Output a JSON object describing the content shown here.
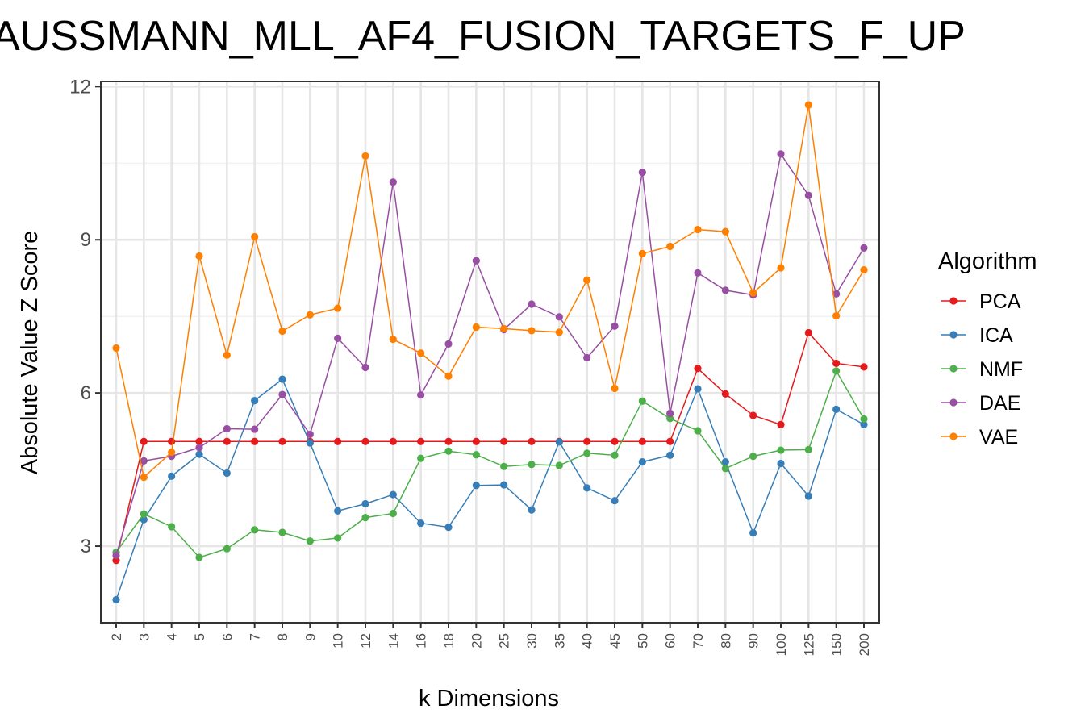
{
  "chart_data": {
    "type": "line",
    "title": "AUSSMANN_MLL_AF4_FUSION_TARGETS_F_UP",
    "xlabel": "k Dimensions",
    "ylabel": "Absolute Value Z Score",
    "categories": [
      "2",
      "3",
      "4",
      "5",
      "6",
      "7",
      "8",
      "9",
      "10",
      "12",
      "14",
      "16",
      "18",
      "20",
      "25",
      "30",
      "35",
      "40",
      "45",
      "50",
      "60",
      "70",
      "80",
      "90",
      "100",
      "125",
      "150",
      "200"
    ],
    "ylim": [
      1.5,
      12.1
    ],
    "yticks": [
      3,
      6,
      9,
      12
    ],
    "grid": true,
    "legend": {
      "title": "Algorithm",
      "position": "right"
    },
    "series": [
      {
        "name": "PCA",
        "color": "#e41a1c",
        "values": [
          2.72,
          5.05,
          5.05,
          5.05,
          5.05,
          5.05,
          5.05,
          5.05,
          5.05,
          5.05,
          5.05,
          5.05,
          5.05,
          5.05,
          5.05,
          5.05,
          5.05,
          5.05,
          5.05,
          5.05,
          5.05,
          6.48,
          5.98,
          5.56,
          5.38,
          7.18,
          6.58,
          6.51
        ]
      },
      {
        "name": "ICA",
        "color": "#377eb8",
        "values": [
          1.95,
          3.52,
          4.37,
          4.8,
          4.43,
          5.85,
          6.27,
          5.02,
          3.69,
          3.83,
          4.01,
          3.45,
          3.37,
          4.19,
          4.2,
          3.71,
          5.04,
          4.14,
          3.89,
          4.65,
          4.78,
          6.08,
          4.65,
          3.26,
          4.62,
          3.98,
          5.68,
          5.38
        ]
      },
      {
        "name": "NMF",
        "color": "#4daf4a",
        "values": [
          2.88,
          3.63,
          3.38,
          2.78,
          2.95,
          3.32,
          3.27,
          3.1,
          3.16,
          3.56,
          3.64,
          4.72,
          4.86,
          4.79,
          4.56,
          4.6,
          4.58,
          4.82,
          4.78,
          5.84,
          5.5,
          5.26,
          4.52,
          4.76,
          4.88,
          4.89,
          6.43,
          5.49
        ]
      },
      {
        "name": "DAE",
        "color": "#984ea3",
        "values": [
          2.82,
          4.67,
          4.76,
          4.93,
          5.3,
          5.29,
          5.97,
          5.19,
          7.07,
          6.5,
          10.13,
          5.96,
          6.96,
          8.59,
          7.24,
          7.74,
          7.49,
          6.69,
          7.31,
          10.32,
          5.6,
          8.35,
          8.01,
          7.92,
          10.68,
          9.87,
          7.94,
          8.84
        ]
      },
      {
        "name": "VAE",
        "color": "#ff7f00",
        "values": [
          6.88,
          4.35,
          4.84,
          8.68,
          6.74,
          9.06,
          7.21,
          7.53,
          7.66,
          10.64,
          7.05,
          6.78,
          6.33,
          7.29,
          7.26,
          7.22,
          7.19,
          8.21,
          6.09,
          8.73,
          8.87,
          9.2,
          9.16,
          7.96,
          8.45,
          11.64,
          7.51,
          8.41
        ]
      }
    ]
  }
}
